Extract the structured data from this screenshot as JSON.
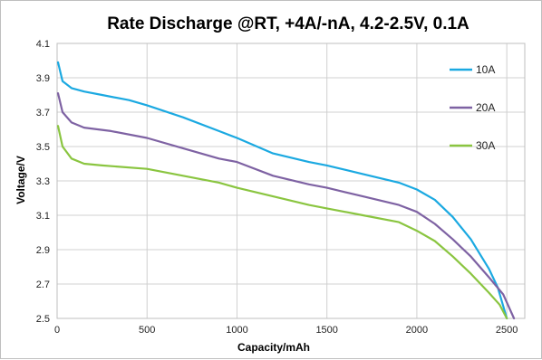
{
  "chart_data": {
    "type": "line",
    "title": "Rate Discharge @RT, +4A/-nA, 4.2-2.5V, 0.1A",
    "xlabel": "Capacity/mAh",
    "ylabel": "Voltage/V",
    "xlim": [
      0,
      2600
    ],
    "ylim": [
      2.5,
      4.1
    ],
    "x_ticks": [
      "0",
      "500",
      "1000",
      "1500",
      "2000",
      "2500"
    ],
    "y_ticks": [
      "2.5",
      "2.7",
      "2.9",
      "3.1",
      "3.3",
      "3.5",
      "3.7",
      "3.9",
      "4.1"
    ],
    "grid": true,
    "legend_position": "right",
    "series": [
      {
        "name": "10A",
        "color": "#1ba9e1",
        "points": [
          [
            5,
            3.99
          ],
          [
            30,
            3.88
          ],
          [
            80,
            3.84
          ],
          [
            150,
            3.82
          ],
          [
            250,
            3.8
          ],
          [
            400,
            3.77
          ],
          [
            500,
            3.74
          ],
          [
            700,
            3.67
          ],
          [
            900,
            3.59
          ],
          [
            1000,
            3.55
          ],
          [
            1200,
            3.46
          ],
          [
            1400,
            3.41
          ],
          [
            1500,
            3.39
          ],
          [
            1700,
            3.34
          ],
          [
            1900,
            3.29
          ],
          [
            2000,
            3.25
          ],
          [
            2100,
            3.19
          ],
          [
            2200,
            3.09
          ],
          [
            2300,
            2.96
          ],
          [
            2400,
            2.79
          ],
          [
            2450,
            2.68
          ],
          [
            2500,
            2.5
          ]
        ]
      },
      {
        "name": "20A",
        "color": "#7e62a3",
        "points": [
          [
            5,
            3.81
          ],
          [
            30,
            3.7
          ],
          [
            80,
            3.64
          ],
          [
            150,
            3.61
          ],
          [
            300,
            3.59
          ],
          [
            500,
            3.55
          ],
          [
            700,
            3.49
          ],
          [
            900,
            3.43
          ],
          [
            1000,
            3.41
          ],
          [
            1200,
            3.33
          ],
          [
            1400,
            3.28
          ],
          [
            1500,
            3.26
          ],
          [
            1700,
            3.21
          ],
          [
            1900,
            3.16
          ],
          [
            2000,
            3.12
          ],
          [
            2100,
            3.05
          ],
          [
            2200,
            2.96
          ],
          [
            2300,
            2.86
          ],
          [
            2400,
            2.74
          ],
          [
            2480,
            2.64
          ],
          [
            2540,
            2.5
          ]
        ]
      },
      {
        "name": "30A",
        "color": "#8ac540",
        "points": [
          [
            5,
            3.62
          ],
          [
            30,
            3.5
          ],
          [
            80,
            3.43
          ],
          [
            150,
            3.4
          ],
          [
            250,
            3.39
          ],
          [
            500,
            3.37
          ],
          [
            700,
            3.33
          ],
          [
            900,
            3.29
          ],
          [
            1000,
            3.26
          ],
          [
            1200,
            3.21
          ],
          [
            1400,
            3.16
          ],
          [
            1500,
            3.14
          ],
          [
            1700,
            3.1
          ],
          [
            1900,
            3.06
          ],
          [
            2000,
            3.01
          ],
          [
            2100,
            2.95
          ],
          [
            2200,
            2.86
          ],
          [
            2300,
            2.76
          ],
          [
            2400,
            2.65
          ],
          [
            2460,
            2.58
          ],
          [
            2500,
            2.5
          ]
        ]
      }
    ]
  }
}
